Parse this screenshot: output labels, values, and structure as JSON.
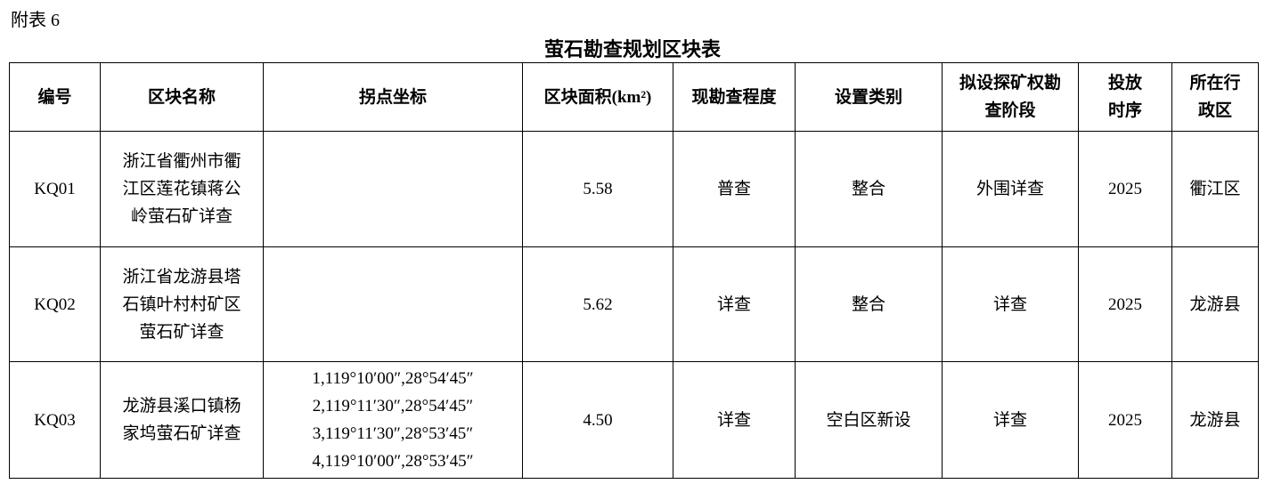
{
  "header": {
    "label": "附表 6",
    "title": "萤石勘查规划区块表"
  },
  "table": {
    "headers": [
      "编号",
      "区块名称",
      "拐点坐标",
      "区块面积(km²)",
      "现勘查程度",
      "设置类别",
      [
        "拟设探矿权勘",
        "查阶段"
      ],
      [
        "投放",
        "时序"
      ],
      [
        "所在行",
        "政区"
      ]
    ],
    "rows": [
      [
        "KQ01",
        [
          "浙江省衢州市衢",
          "江区莲花镇蒋公",
          "岭萤石矿详查"
        ],
        null,
        "5.58",
        "普查",
        "整合",
        "外围详查",
        "2025",
        "衢江区"
      ],
      [
        "KQ02",
        [
          "浙江省龙游县塔",
          "石镇叶村村矿区",
          "萤石矿详查"
        ],
        null,
        "5.62",
        "详查",
        "整合",
        "详查",
        "2025",
        "龙游县"
      ],
      [
        "KQ03",
        [
          "龙游县溪口镇杨",
          "家坞萤石矿详查"
        ],
        [
          "1,119°10′00″,28°54′45″",
          "2,119°11′30″,28°54′45″",
          "3,119°11′30″,28°53′45″",
          "4,119°10′00″,28°53′45″"
        ],
        "4.50",
        "详查",
        "空白区新设",
        "详查",
        "2025",
        "龙游县"
      ]
    ]
  }
}
